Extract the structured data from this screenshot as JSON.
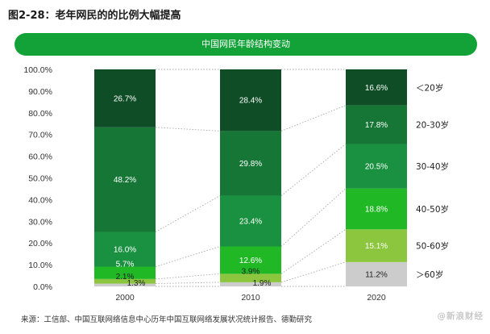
{
  "figure_title": "图2-28：老年网民的的比例大幅提高",
  "source_note": "来源：工信部、中国互联网络信息中心历年中国互联网络发展状况统计报告、德勤研究",
  "watermark": "@新浪财经",
  "chart_data": {
    "type": "bar",
    "stacked": true,
    "title": "中国网民年龄结构变动",
    "categories": [
      "2000",
      "2010",
      "2020"
    ],
    "ylim": [
      0,
      100
    ],
    "yticks": [
      "0.0%",
      "10.0%",
      "20.0%",
      "30.0%",
      "40.0%",
      "50.0%",
      "60.0%",
      "70.0%",
      "80.0%",
      "90.0%",
      "100.0%"
    ],
    "series": [
      {
        "name": ">60岁",
        "values": [
          1.3,
          1.9,
          11.2
        ],
        "color": "#cccccc",
        "label_color": "#222222",
        "labels": [
          "1.3%",
          "1.9%",
          "11.2%"
        ]
      },
      {
        "name": "50-60岁",
        "values": [
          2.1,
          3.9,
          15.1
        ],
        "color": "#8cc63e",
        "label_color": "#ffffff",
        "labels": [
          "2.1%",
          "3.9%",
          "15.1%"
        ]
      },
      {
        "name": "40-50岁",
        "values": [
          5.7,
          12.6,
          18.8
        ],
        "color": "#21b826",
        "label_color": "#ffffff",
        "labels": [
          "5.7%",
          "12.6%",
          "18.8%"
        ]
      },
      {
        "name": "30-40岁",
        "values": [
          16.0,
          23.4,
          20.5
        ],
        "color": "#199140",
        "label_color": "#ffffff",
        "labels": [
          "16.0%",
          "23.4%",
          "20.5%"
        ]
      },
      {
        "name": "20-30岁",
        "values": [
          48.2,
          29.8,
          17.8
        ],
        "color": "#157636",
        "label_color": "#ffffff",
        "labels": [
          "48.2%",
          "29.8%",
          "17.8%"
        ]
      },
      {
        "name": "<20岁",
        "values": [
          26.7,
          28.4,
          16.6
        ],
        "color": "#0e4d26",
        "label_color": "#ffffff",
        "labels": [
          "26.7%",
          "28.4%",
          "16.6%"
        ]
      }
    ],
    "legend_labels": [
      "＞60岁",
      "50-60岁",
      "40-50岁",
      "30-40岁",
      "20-30岁",
      "＜20岁"
    ],
    "legend_placement": "right",
    "grid": false,
    "connector_lines": "dotted"
  }
}
